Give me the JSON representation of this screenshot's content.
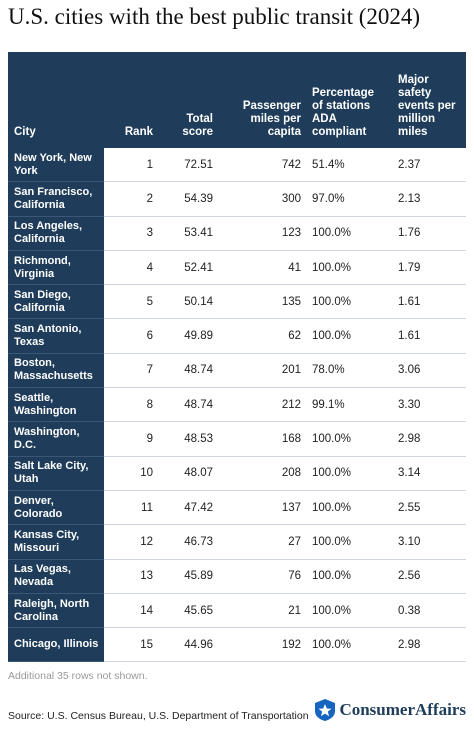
{
  "header": {
    "title": "U.S. cities with the best public transit (2024)"
  },
  "table": {
    "columns": [
      "City",
      "Rank",
      "Total score",
      "Passenger miles per capita",
      "Percentage of stations ADA compliant",
      "Major safety events per million miles"
    ],
    "rows": [
      [
        "New York, New York",
        "1",
        "72.51",
        "742",
        "51.4%",
        "2.37"
      ],
      [
        "San Francisco, California",
        "2",
        "54.39",
        "300",
        "97.0%",
        "2.13"
      ],
      [
        "Los Angeles, California",
        "3",
        "53.41",
        "123",
        "100.0%",
        "1.76"
      ],
      [
        "Richmond, Virginia",
        "4",
        "52.41",
        "41",
        "100.0%",
        "1.79"
      ],
      [
        "San Diego, California",
        "5",
        "50.14",
        "135",
        "100.0%",
        "1.61"
      ],
      [
        "San Antonio, Texas",
        "6",
        "49.89",
        "62",
        "100.0%",
        "1.61"
      ],
      [
        "Boston, Massachusetts",
        "7",
        "48.74",
        "201",
        "78.0%",
        "3.06"
      ],
      [
        "Seattle, Washington",
        "8",
        "48.74",
        "212",
        "99.1%",
        "3.30"
      ],
      [
        "Washington, D.C.",
        "9",
        "48.53",
        "168",
        "100.0%",
        "2.98"
      ],
      [
        "Salt Lake City, Utah",
        "10",
        "48.07",
        "208",
        "100.0%",
        "3.14"
      ],
      [
        "Denver, Colorado",
        "11",
        "47.42",
        "137",
        "100.0%",
        "2.55"
      ],
      [
        "Kansas City, Missouri",
        "12",
        "46.73",
        "27",
        "100.0%",
        "3.10"
      ],
      [
        "Las Vegas, Nevada",
        "13",
        "45.89",
        "76",
        "100.0%",
        "2.56"
      ],
      [
        "Raleigh, North Carolina",
        "14",
        "45.65",
        "21",
        "100.0%",
        "0.38"
      ],
      [
        "Chicago, Illinois",
        "15",
        "44.96",
        "192",
        "100.0%",
        "2.98"
      ]
    ]
  },
  "footer": {
    "note": "Additional 35 rows not shown.",
    "source": "Source: U.S. Census Bureau, U.S. Department of Transportation",
    "logo": "ConsumerAffairs"
  }
}
